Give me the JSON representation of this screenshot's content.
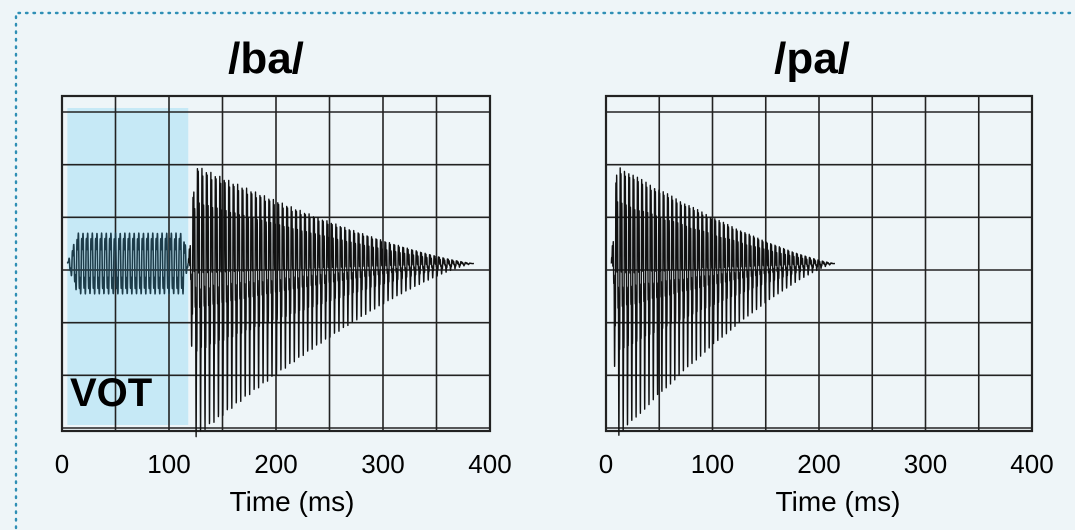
{
  "colors": {
    "background": "#eef5f8",
    "border_dots": "#2f8fb5",
    "vot_shade": "#c6e9f6",
    "grid": "#222222",
    "waveform_vowel": "#111111",
    "waveform_prevoicing": "#1d3c4a"
  },
  "chart_data": [
    {
      "type": "line",
      "title": "/ba/",
      "xlabel": "Time (ms)",
      "ylabel": "",
      "xlim": [
        0,
        400
      ],
      "ylim": [
        -1,
        1
      ],
      "xticks": [
        "0",
        "100",
        "200",
        "300",
        "400"
      ],
      "grid": true,
      "annotations": [
        {
          "label": "VOT",
          "x_start": 5,
          "x_end": 118
        }
      ],
      "series": [
        {
          "segment": "prevoicing",
          "start": 5,
          "end": 118,
          "amplitude": 0.22,
          "cycles": 26
        },
        {
          "segment": "voiced-vowel",
          "start": 118,
          "end": 385,
          "amplitude": 1.0,
          "cycles": 64
        }
      ]
    },
    {
      "type": "line",
      "title": "/pa/",
      "xlabel": "Time (ms)",
      "ylabel": "",
      "xlim": [
        0,
        400
      ],
      "ylim": [
        -1,
        1
      ],
      "xticks": [
        "0",
        "100",
        "200",
        "300",
        "400"
      ],
      "grid": true,
      "annotations": [],
      "series": [
        {
          "segment": "voiced-vowel",
          "start": 5,
          "end": 215,
          "amplitude": 1.0,
          "cycles": 52
        }
      ]
    }
  ]
}
